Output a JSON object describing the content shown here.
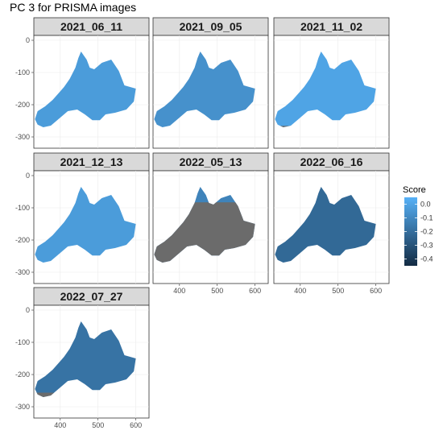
{
  "chart_data": {
    "type": "heatmap",
    "title": "PC 3 for PRISMA images",
    "facets": [
      {
        "label": "2021_06_11",
        "score": -0.03,
        "gray_fraction": 0.12
      },
      {
        "label": "2021_09_05",
        "score": -0.07,
        "gray_fraction": 0.0
      },
      {
        "label": "2021_11_02",
        "score": 0.0,
        "gray_fraction": 0.22
      },
      {
        "label": "2021_12_13",
        "score": -0.03,
        "gray_fraction": 0.0
      },
      {
        "label": "2022_05_13",
        "score": -0.12,
        "gray_fraction": 0.8
      },
      {
        "label": "2022_06_16",
        "score": -0.22,
        "gray_fraction": 0.0
      },
      {
        "label": "2022_07_27",
        "score": -0.18,
        "gray_fraction": 0.25
      }
    ],
    "x_ticks": [
      400,
      500,
      600
    ],
    "y_ticks": [
      0,
      -100,
      -200,
      -300
    ],
    "xlim": [
      330,
      635
    ],
    "ylim": [
      -335,
      15
    ],
    "legend": {
      "title": "Score",
      "breaks": [
        0.0,
        -0.1,
        -0.2,
        -0.3,
        -0.4
      ],
      "labels": [
        "0.0",
        "-0.1",
        "-0.2",
        "-0.3",
        "-0.4"
      ],
      "range": [
        -0.45,
        0.05
      ],
      "low_color": "#132B43",
      "high_color": "#56B1F7",
      "na_color": "#6b6b6b"
    }
  }
}
